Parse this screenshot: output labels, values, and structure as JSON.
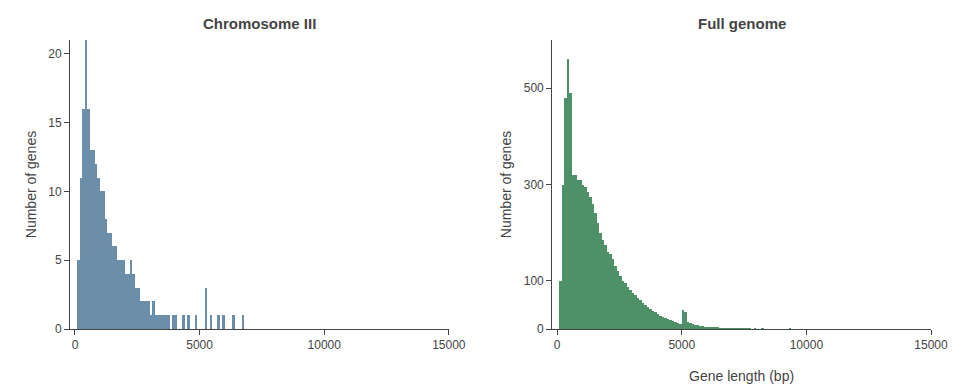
{
  "chart_data": [
    {
      "type": "histogram",
      "title": "Chromosome III",
      "ylabel": "Number of genes",
      "color": "#6b8eaa",
      "grid": false,
      "xlim": [
        -200,
        15000
      ],
      "xticks": [
        0,
        5000,
        10000,
        15000
      ],
      "ylim": [
        0,
        21
      ],
      "yticks": [
        0,
        5,
        10,
        15,
        20
      ],
      "bins": [
        0,
        100,
        200,
        300,
        400,
        500,
        600,
        700,
        800,
        900,
        1000,
        1100,
        1200,
        1300,
        1400,
        1500,
        1600,
        1700,
        1800,
        1900,
        2000,
        2100,
        2200,
        2300,
        2400,
        2500,
        2600,
        2700,
        2800,
        2900,
        3000,
        3100,
        3200,
        3300,
        3400,
        3500,
        3600,
        3700,
        3800,
        3900,
        4000,
        4100,
        4200,
        4300,
        4400,
        4500,
        4600,
        4700,
        4800,
        4900,
        5000,
        5100,
        5200,
        5300,
        5400,
        5500,
        5600,
        5700,
        5800,
        5900,
        6000,
        6100,
        6200,
        6300,
        6400,
        6500,
        6600,
        6700,
        6800,
        6900,
        7000,
        7100,
        7200,
        7300,
        7400,
        7500,
        7600,
        7700,
        7800,
        7900,
        8000,
        8100,
        8200,
        8300,
        8400,
        8500,
        8600,
        8700,
        8800,
        8900,
        9000,
        9100,
        9200,
        9300,
        9400,
        9500,
        9600,
        9700,
        9800,
        9900,
        10000,
        10100,
        10200,
        10300,
        10400,
        10500,
        10600,
        10700,
        10800,
        10900,
        11000,
        11100,
        11200,
        11300,
        11400,
        11500,
        11600,
        11700,
        11800,
        11900,
        12000,
        12100,
        12200,
        12300,
        12400,
        12500,
        12600,
        12700,
        12800,
        12900,
        13000,
        13100,
        13200,
        13300,
        13400,
        13500,
        13600,
        13700,
        13800,
        13900,
        14000,
        14100,
        14200,
        14300,
        14400,
        14500,
        14600,
        14700,
        14800,
        14900,
        15000
      ],
      "values": [
        0,
        5,
        11,
        16,
        21,
        16,
        13,
        13,
        12,
        11,
        10,
        10,
        8,
        7,
        7,
        6,
        6,
        5,
        5,
        5,
        4,
        4,
        5,
        4,
        3,
        3,
        2,
        2,
        2,
        2,
        1,
        2,
        1,
        1,
        1,
        1,
        1,
        1,
        0,
        1,
        1,
        0,
        0,
        1,
        0,
        1,
        0,
        0,
        1,
        0,
        0,
        0,
        3,
        0,
        1,
        0,
        0,
        1,
        0,
        1,
        0,
        0,
        0,
        1,
        0,
        0,
        0,
        1,
        0,
        0,
        0,
        0,
        0,
        0,
        0,
        0,
        0,
        0,
        0,
        0,
        0,
        0,
        0,
        0,
        0,
        0,
        0,
        0,
        0,
        0,
        0,
        0,
        0,
        0,
        0,
        0,
        0,
        0,
        0,
        0,
        0,
        0,
        0,
        0,
        0,
        0,
        0,
        0,
        0,
        0,
        0,
        0,
        0,
        0,
        0,
        0,
        0,
        0,
        0,
        0,
        0,
        0,
        0,
        0,
        0,
        0,
        0,
        0,
        0,
        0,
        0,
        0,
        0,
        0,
        0,
        0,
        0,
        0,
        0,
        0,
        0,
        0,
        0,
        0,
        0,
        0,
        0,
        0,
        0,
        0
      ]
    },
    {
      "type": "histogram",
      "title": "Full genome",
      "xlabel": "Gene length (bp)",
      "ylabel": "Number of genes",
      "color": "#4e9068",
      "grid": false,
      "xlim": [
        -200,
        15000
      ],
      "xticks": [
        0,
        5000,
        10000,
        15000
      ],
      "ylim": [
        0,
        600
      ],
      "yticks": [
        0,
        100,
        300,
        500
      ],
      "bins": [
        0,
        100,
        200,
        300,
        400,
        500,
        600,
        700,
        800,
        900,
        1000,
        1100,
        1200,
        1300,
        1400,
        1500,
        1600,
        1700,
        1800,
        1900,
        2000,
        2100,
        2200,
        2300,
        2400,
        2500,
        2600,
        2700,
        2800,
        2900,
        3000,
        3100,
        3200,
        3300,
        3400,
        3500,
        3600,
        3700,
        3800,
        3900,
        4000,
        4100,
        4200,
        4300,
        4400,
        4500,
        4600,
        4700,
        4800,
        4900,
        5000,
        5100,
        5200,
        5300,
        5400,
        5500,
        5600,
        5700,
        5800,
        5900,
        6000,
        6100,
        6200,
        6300,
        6400,
        6500,
        6600,
        6700,
        6800,
        6900,
        7000,
        7100,
        7200,
        7300,
        7400,
        7500,
        7600,
        7700,
        7800,
        7900,
        8000,
        8100,
        8200,
        8300,
        8400,
        8500,
        8600,
        8700,
        8800,
        8900,
        9000,
        9100,
        9200,
        9300,
        9400,
        9500,
        9600,
        9700,
        9800,
        9900,
        10000,
        10100,
        10200,
        10300,
        10400,
        10500,
        10600,
        10700,
        10800,
        10900,
        11000,
        11100,
        11200,
        11300,
        11400,
        11500,
        11600,
        11700,
        11800,
        11900,
        12000,
        12100,
        12200,
        12300,
        12400,
        12500,
        12600,
        12700,
        12800,
        12900,
        13000,
        13100,
        13200,
        13300,
        13400,
        13500,
        13600,
        13700,
        13800,
        13900,
        14000,
        14100,
        14200,
        14300,
        14400,
        14500,
        14600,
        14700,
        14800,
        14900,
        15000
      ],
      "values": [
        0,
        100,
        300,
        480,
        560,
        490,
        320,
        320,
        310,
        310,
        300,
        295,
        285,
        275,
        260,
        240,
        220,
        200,
        185,
        175,
        160,
        155,
        145,
        130,
        120,
        110,
        100,
        95,
        88,
        82,
        75,
        70,
        65,
        60,
        55,
        50,
        46,
        42,
        38,
        35,
        32,
        28,
        25,
        22,
        20,
        18,
        16,
        14,
        12,
        11,
        40,
        35,
        15,
        12,
        10,
        9,
        8,
        7,
        6,
        5,
        5,
        4,
        4,
        3,
        3,
        2,
        2,
        2,
        2,
        1,
        1,
        1,
        1,
        1,
        1,
        1,
        1,
        1,
        0,
        1,
        0,
        0,
        1,
        0,
        0,
        0,
        0,
        0,
        0,
        0,
        0,
        0,
        0,
        1,
        0,
        0,
        0,
        0,
        0,
        0,
        0,
        0,
        0,
        0,
        0,
        0,
        0,
        0,
        0,
        0,
        0,
        0,
        0,
        0,
        0,
        0,
        0,
        0,
        0,
        0,
        0,
        0,
        0,
        0,
        0,
        0,
        0,
        0,
        0,
        0,
        0,
        0,
        0,
        0,
        0,
        0,
        0,
        0,
        0,
        0,
        0,
        0,
        0,
        0,
        0,
        0,
        0,
        0,
        0,
        0
      ]
    }
  ]
}
